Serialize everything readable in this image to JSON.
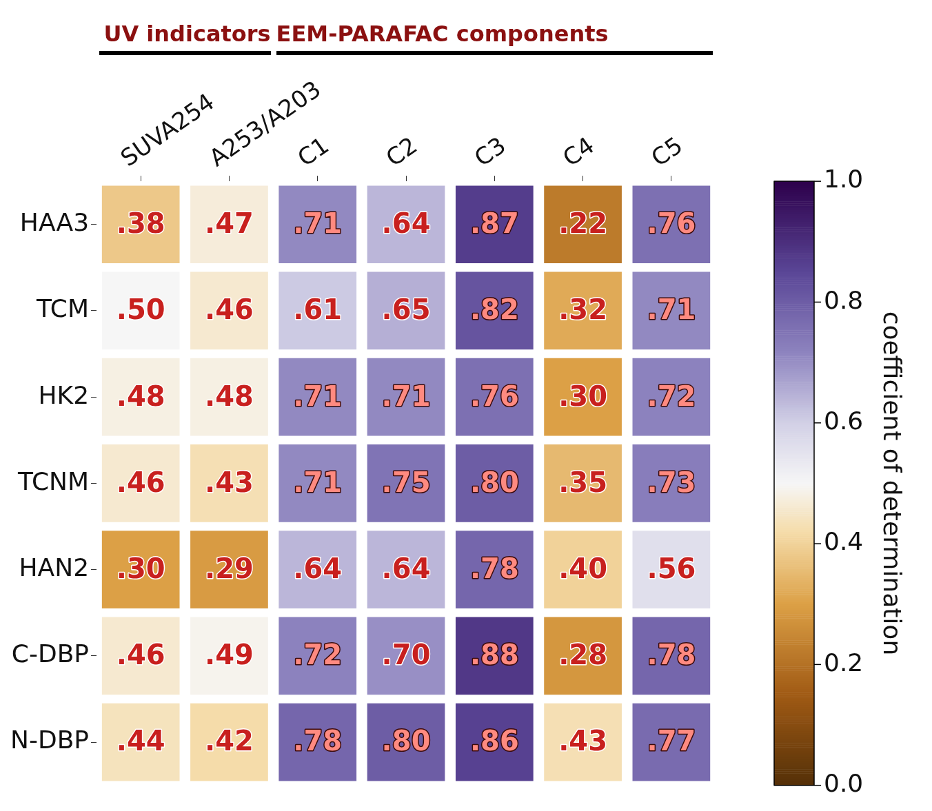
{
  "chart_data": {
    "type": "heatmap",
    "annotations": [
      "UV indicators",
      "EEM-PARAFAC components"
    ],
    "categories": [
      "SUVA254",
      "A253/A203",
      "C1",
      "C2",
      "C3",
      "C4",
      "C5"
    ],
    "y_categories": [
      "HAA3",
      "TCM",
      "HK2",
      "TCNM",
      "HAN2",
      "C-DBP",
      "N-DBP"
    ],
    "cells": [
      [
        0.38,
        0.47,
        0.71,
        0.64,
        0.87,
        0.22,
        0.76
      ],
      [
        0.5,
        0.46,
        0.61,
        0.65,
        0.82,
        0.32,
        0.71
      ],
      [
        0.48,
        0.48,
        0.71,
        0.71,
        0.76,
        0.3,
        0.72
      ],
      [
        0.46,
        0.43,
        0.71,
        0.75,
        0.8,
        0.35,
        0.73
      ],
      [
        0.3,
        0.29,
        0.64,
        0.64,
        0.78,
        0.4,
        0.56
      ],
      [
        0.46,
        0.49,
        0.72,
        0.7,
        0.88,
        0.28,
        0.78
      ],
      [
        0.44,
        0.42,
        0.78,
        0.8,
        0.86,
        0.43,
        0.77
      ]
    ],
    "cell_labels": [
      [
        ".38",
        ".47",
        ".71",
        ".64",
        ".87",
        ".22",
        ".76"
      ],
      [
        ".50",
        ".46",
        ".61",
        ".65",
        ".82",
        ".32",
        ".71"
      ],
      [
        ".48",
        ".48",
        ".71",
        ".71",
        ".76",
        ".30",
        ".72"
      ],
      [
        ".46",
        ".43",
        ".71",
        ".75",
        ".80",
        ".35",
        ".73"
      ],
      [
        ".30",
        ".29",
        ".64",
        ".64",
        ".78",
        ".40",
        ".56"
      ],
      [
        ".46",
        ".49",
        ".72",
        ".70",
        ".88",
        ".28",
        ".78"
      ],
      [
        ".44",
        ".42",
        ".78",
        ".80",
        ".86",
        ".43",
        ".77"
      ]
    ],
    "clim": [
      0,
      1
    ],
    "cticks": [
      {
        "value": 0,
        "label": "0.0"
      },
      {
        "value": 0.2,
        "label": "0.2"
      },
      {
        "value": 0.4,
        "label": "0.4"
      },
      {
        "value": 0.6,
        "label": "0.6"
      },
      {
        "value": 0.8,
        "label": "0.8"
      },
      {
        "value": 1,
        "label": "1.0"
      }
    ],
    "clabel": "coefficient of determination"
  }
}
